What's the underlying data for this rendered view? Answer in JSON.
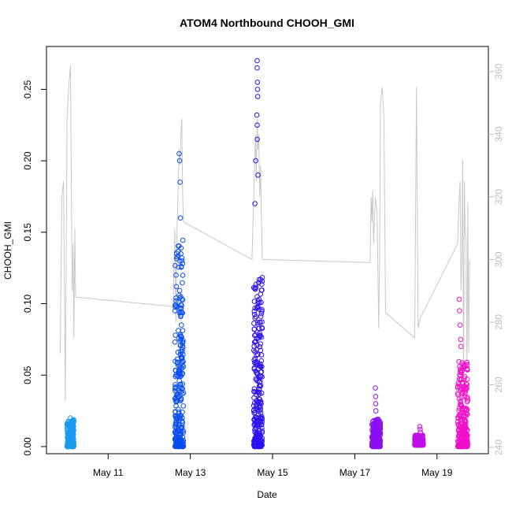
{
  "chart_data": {
    "type": "scatter",
    "title": "ATOM4 Northbound CHOOH_GMI",
    "xlabel": "Date",
    "ylabel": "CHOOH_GMI",
    "xlim": [
      "2016-05-09T12:00",
      "2016-05-20T06:00"
    ],
    "ylim": [
      -0.005,
      0.28
    ],
    "x_ticks": [
      {
        "date": "2016-05-11T00:00",
        "label": "May 11"
      },
      {
        "date": "2016-05-13T00:00",
        "label": "May 13"
      },
      {
        "date": "2016-05-15T00:00",
        "label": "May 15"
      },
      {
        "date": "2016-05-17T00:00",
        "label": "May 17"
      },
      {
        "date": "2016-05-19T00:00",
        "label": "May 19"
      }
    ],
    "y_ticks": [
      {
        "value": 0.0,
        "label": "0.00"
      },
      {
        "value": 0.05,
        "label": "0.05"
      },
      {
        "value": 0.1,
        "label": "0.10"
      },
      {
        "value": 0.15,
        "label": "0.15"
      },
      {
        "value": 0.2,
        "label": "0.20"
      },
      {
        "value": 0.25,
        "label": "0.25"
      }
    ],
    "y2lim": [
      238,
      368
    ],
    "y2_ticks": [
      {
        "value": 240,
        "label": "240"
      },
      {
        "value": 260,
        "label": "260"
      },
      {
        "value": 280,
        "label": "280"
      },
      {
        "value": 300,
        "label": "300"
      },
      {
        "value": 320,
        "label": "320"
      },
      {
        "value": 340,
        "label": "340"
      },
      {
        "value": 360,
        "label": "360"
      }
    ],
    "grid": false,
    "marker": "open-circle",
    "flights": [
      {
        "color": "#1a9bf0",
        "start": "2016-05-10T00:00",
        "end": "2016-05-10T04:00",
        "ymin": 0.0,
        "ymax": 0.019,
        "spikes": [
          {
            "t": "2016-05-10T02:00",
            "y": 0.02
          }
        ]
      },
      {
        "color": "#0a4df0",
        "start": "2016-05-12T15:00",
        "end": "2016-05-12T20:00",
        "ymin": 0.0,
        "ymax": 0.145,
        "spikes": [
          {
            "t": "2016-05-12T17:30",
            "y": 0.205
          },
          {
            "t": "2016-05-12T17:45",
            "y": 0.2
          },
          {
            "t": "2016-05-12T18:00",
            "y": 0.185
          },
          {
            "t": "2016-05-12T18:15",
            "y": 0.16
          },
          {
            "t": "2016-05-12T19:00",
            "y": 0.13
          }
        ]
      },
      {
        "color": "#2b10f0",
        "start": "2016-05-14T13:00",
        "end": "2016-05-14T18:00",
        "ymin": 0.0,
        "ymax": 0.12,
        "spikes": [
          {
            "t": "2016-05-14T15:00",
            "y": 0.27
          },
          {
            "t": "2016-05-14T15:00",
            "y": 0.265
          },
          {
            "t": "2016-05-14T15:10",
            "y": 0.255
          },
          {
            "t": "2016-05-14T15:15",
            "y": 0.25
          },
          {
            "t": "2016-05-14T15:20",
            "y": 0.245
          },
          {
            "t": "2016-05-14T14:50",
            "y": 0.232
          },
          {
            "t": "2016-05-14T15:00",
            "y": 0.225
          },
          {
            "t": "2016-05-14T15:05",
            "y": 0.215
          },
          {
            "t": "2016-05-14T14:10",
            "y": 0.2
          },
          {
            "t": "2016-05-14T15:30",
            "y": 0.19
          },
          {
            "t": "2016-05-14T13:40",
            "y": 0.17
          }
        ]
      },
      {
        "color": "#8a10f0",
        "start": "2016-05-17T10:00",
        "end": "2016-05-17T15:00",
        "ymin": 0.0,
        "ymax": 0.02,
        "spikes": [
          {
            "t": "2016-05-17T12:00",
            "y": 0.041
          },
          {
            "t": "2016-05-17T12:10",
            "y": 0.035
          },
          {
            "t": "2016-05-17T12:15",
            "y": 0.03
          },
          {
            "t": "2016-05-17T12:20",
            "y": 0.025
          }
        ]
      },
      {
        "color": "#c010e6",
        "start": "2016-05-18T11:00",
        "end": "2016-05-18T16:00",
        "ymin": 0.001,
        "ymax": 0.008,
        "spikes": [
          {
            "t": "2016-05-18T14:00",
            "y": 0.014
          },
          {
            "t": "2016-05-18T14:10",
            "y": 0.012
          },
          {
            "t": "2016-05-18T14:20",
            "y": 0.01
          }
        ]
      },
      {
        "color": "#f010c8",
        "start": "2016-05-19T12:00",
        "end": "2016-05-19T18:00",
        "ymin": 0.0,
        "ymax": 0.06,
        "spikes": [
          {
            "t": "2016-05-19T13:00",
            "y": 0.103
          },
          {
            "t": "2016-05-19T13:10",
            "y": 0.095
          },
          {
            "t": "2016-05-19T13:30",
            "y": 0.085
          },
          {
            "t": "2016-05-19T13:50",
            "y": 0.075
          },
          {
            "t": "2016-05-19T14:00",
            "y": 0.07
          }
        ]
      }
    ],
    "secondary_line": {
      "color": "#c8c8c8",
      "points": [
        [
          "2016-05-09T20:00",
          270
        ],
        [
          "2016-05-09T21:00",
          320
        ],
        [
          "2016-05-09T22:00",
          325
        ],
        [
          "2016-05-09T23:00",
          255
        ],
        [
          "2016-05-10T00:00",
          345
        ],
        [
          "2016-05-10T01:00",
          355
        ],
        [
          "2016-05-10T02:00",
          362
        ],
        [
          "2016-05-10T03:00",
          290
        ],
        [
          "2016-05-10T03:30",
          305
        ],
        [
          "2016-05-10T04:00",
          275
        ],
        [
          "2016-05-10T04:30",
          310
        ],
        [
          "2016-05-10T05:00",
          288
        ],
        [
          "2016-05-12T14:00",
          285
        ],
        [
          "2016-05-12T14:30",
          300
        ],
        [
          "2016-05-12T15:00",
          310
        ],
        [
          "2016-05-12T15:30",
          280
        ],
        [
          "2016-05-12T16:00",
          305
        ],
        [
          "2016-05-12T17:00",
          325
        ],
        [
          "2016-05-12T17:30",
          335
        ],
        [
          "2016-05-12T18:00",
          330
        ],
        [
          "2016-05-12T18:30",
          340
        ],
        [
          "2016-05-12T19:00",
          345
        ],
        [
          "2016-05-12T19:30",
          320
        ],
        [
          "2016-05-12T20:00",
          312
        ],
        [
          "2016-05-14T12:00",
          300
        ],
        [
          "2016-05-14T13:00",
          320
        ],
        [
          "2016-05-14T13:30",
          330
        ],
        [
          "2016-05-14T14:00",
          340
        ],
        [
          "2016-05-14T14:30",
          325
        ],
        [
          "2016-05-14T15:00",
          345
        ],
        [
          "2016-05-14T15:30",
          335
        ],
        [
          "2016-05-14T16:00",
          340
        ],
        [
          "2016-05-14T16:30",
          320
        ],
        [
          "2016-05-14T17:00",
          330
        ],
        [
          "2016-05-14T17:30",
          312
        ],
        [
          "2016-05-14T18:00",
          300
        ],
        [
          "2016-05-14T19:00",
          300
        ],
        [
          "2016-05-17T09:00",
          299
        ],
        [
          "2016-05-17T09:30",
          320
        ],
        [
          "2016-05-17T10:00",
          312
        ],
        [
          "2016-05-17T10:30",
          322
        ],
        [
          "2016-05-17T11:00",
          305
        ],
        [
          "2016-05-17T12:00",
          320
        ],
        [
          "2016-05-17T13:00",
          315
        ],
        [
          "2016-05-17T14:00",
          278
        ],
        [
          "2016-05-17T14:30",
          300
        ],
        [
          "2016-05-17T15:00",
          350
        ],
        [
          "2016-05-17T16:00",
          355
        ],
        [
          "2016-05-17T17:00",
          345
        ],
        [
          "2016-05-17T18:00",
          283
        ],
        [
          "2016-05-18T11:00",
          275
        ],
        [
          "2016-05-18T12:00",
          355
        ],
        [
          "2016-05-18T13:00",
          278
        ],
        [
          "2016-05-18T14:00",
          281
        ],
        [
          "2016-05-19T12:00",
          305
        ],
        [
          "2016-05-19T13:00",
          320
        ],
        [
          "2016-05-19T13:30",
          325
        ],
        [
          "2016-05-19T14:00",
          290
        ],
        [
          "2016-05-19T14:30",
          300
        ],
        [
          "2016-05-19T15:00",
          332
        ],
        [
          "2016-05-19T15:30",
          260
        ],
        [
          "2016-05-19T16:00",
          325
        ],
        [
          "2016-05-19T16:30",
          310
        ],
        [
          "2016-05-19T17:00",
          305
        ],
        [
          "2016-05-19T17:30",
          265
        ],
        [
          "2016-05-19T18:00",
          318
        ],
        [
          "2016-05-19T18:30",
          270
        ],
        [
          "2016-05-19T19:00",
          300
        ]
      ]
    }
  }
}
